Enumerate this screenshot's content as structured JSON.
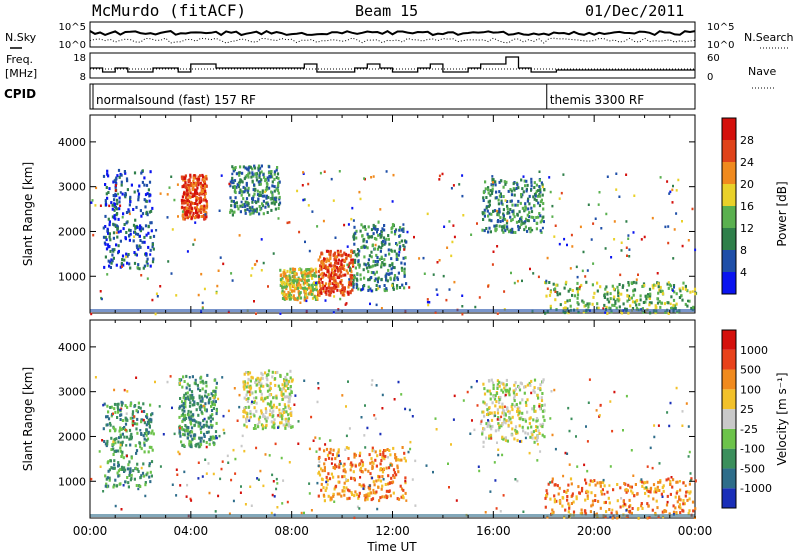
{
  "header": {
    "station": "McMurdo (fitACF)",
    "beam": "Beam 15",
    "date": "01/Dec/2011"
  },
  "left_labels": {
    "nsky": "N.Sky",
    "freq_line1": "Freq.",
    "freq_line2": "[MHz]",
    "cpid": "CPID"
  },
  "right_labels": {
    "nsearch": "N.Search",
    "nave": "Nave"
  },
  "noise_axis": {
    "top_left": "10^5",
    "bottom_left": "10^0",
    "top_right": "10^5",
    "bottom_right": "10^0"
  },
  "freq_axis": {
    "top_left": "18",
    "bottom_left": "8",
    "top_right": "60",
    "bottom_right": "0"
  },
  "cpid_labels": [
    {
      "text": "normalsound (fast) 157 RF",
      "start_hour": 0
    },
    {
      "text": "themis 3300 RF",
      "start_hour": 18
    }
  ],
  "chart_data": [
    {
      "type": "heatmap",
      "quantity": "Power",
      "xlabel": "Time UT",
      "ylabel": "Slant Range [km]",
      "x_ticks": [
        "00:00",
        "04:00",
        "08:00",
        "12:00",
        "16:00",
        "20:00",
        "00:00"
      ],
      "x_range_hours": [
        0,
        24
      ],
      "y_ticks": [
        1000,
        2000,
        3000,
        4000
      ],
      "y_range_km": [
        180,
        4600
      ],
      "colorbar": {
        "label": "Power [dB]",
        "ticks": [
          "4",
          "8",
          "12",
          "16",
          "20",
          "24",
          "28"
        ],
        "colors": [
          "#0a14f0",
          "#1f4fa8",
          "#2f7f4a",
          "#5ab04f",
          "#e9d12a",
          "#f08a1e",
          "#e0431a",
          "#d4100c"
        ]
      },
      "echo_regions": [
        {
          "t": [
            0.5,
            2.5
          ],
          "r": [
            1200,
            3400
          ],
          "level": 1
        },
        {
          "t": [
            3.6,
            4.6
          ],
          "r": [
            2300,
            3300
          ],
          "level": 6
        },
        {
          "t": [
            5.5,
            7.5
          ],
          "r": [
            2400,
            3500
          ],
          "level": 2
        },
        {
          "t": [
            7.5,
            9.0
          ],
          "r": [
            500,
            1200
          ],
          "level": 4
        },
        {
          "t": [
            9.0,
            10.4
          ],
          "r": [
            600,
            1600
          ],
          "level": 6
        },
        {
          "t": [
            10.4,
            12.5
          ],
          "r": [
            700,
            2200
          ],
          "level": 2
        },
        {
          "t": [
            15.5,
            18.0
          ],
          "r": [
            2000,
            3200
          ],
          "level": 2
        },
        {
          "t": [
            18.0,
            24.0
          ],
          "r": [
            200,
            900
          ],
          "level": 3
        }
      ]
    },
    {
      "type": "heatmap",
      "quantity": "Velocity",
      "xlabel": "Time UT",
      "ylabel": "Slant Range [km]",
      "x_ticks": [
        "00:00",
        "04:00",
        "08:00",
        "12:00",
        "16:00",
        "20:00",
        "00:00"
      ],
      "x_range_hours": [
        0,
        24
      ],
      "y_ticks": [
        1000,
        2000,
        3000,
        4000
      ],
      "y_range_km": [
        180,
        4600
      ],
      "colorbar": {
        "label": "Velocity [m s⁻¹]",
        "ticks": [
          "1000",
          "500",
          "100",
          "25",
          "-25",
          "-100",
          "-500",
          "-1000"
        ],
        "colors": [
          "#1a2fb8",
          "#2e6d8a",
          "#3b8f5c",
          "#6cc34a",
          "#c9c9c9",
          "#f2c12a",
          "#f08a1e",
          "#e8421b",
          "#d4100c"
        ]
      },
      "echo_regions": [
        {
          "t": [
            0.5,
            2.5
          ],
          "r": [
            900,
            2800
          ],
          "level": 2
        },
        {
          "t": [
            3.5,
            5.0
          ],
          "r": [
            1800,
            3400
          ],
          "level": 2
        },
        {
          "t": [
            6.0,
            8.0
          ],
          "r": [
            2200,
            3500
          ],
          "level": 4
        },
        {
          "t": [
            9.0,
            12.5
          ],
          "r": [
            600,
            1800
          ],
          "level": 6
        },
        {
          "t": [
            15.5,
            18.0
          ],
          "r": [
            1900,
            3300
          ],
          "level": 4
        },
        {
          "t": [
            18.0,
            24.0
          ],
          "r": [
            200,
            1100
          ],
          "level": 6
        }
      ]
    }
  ]
}
